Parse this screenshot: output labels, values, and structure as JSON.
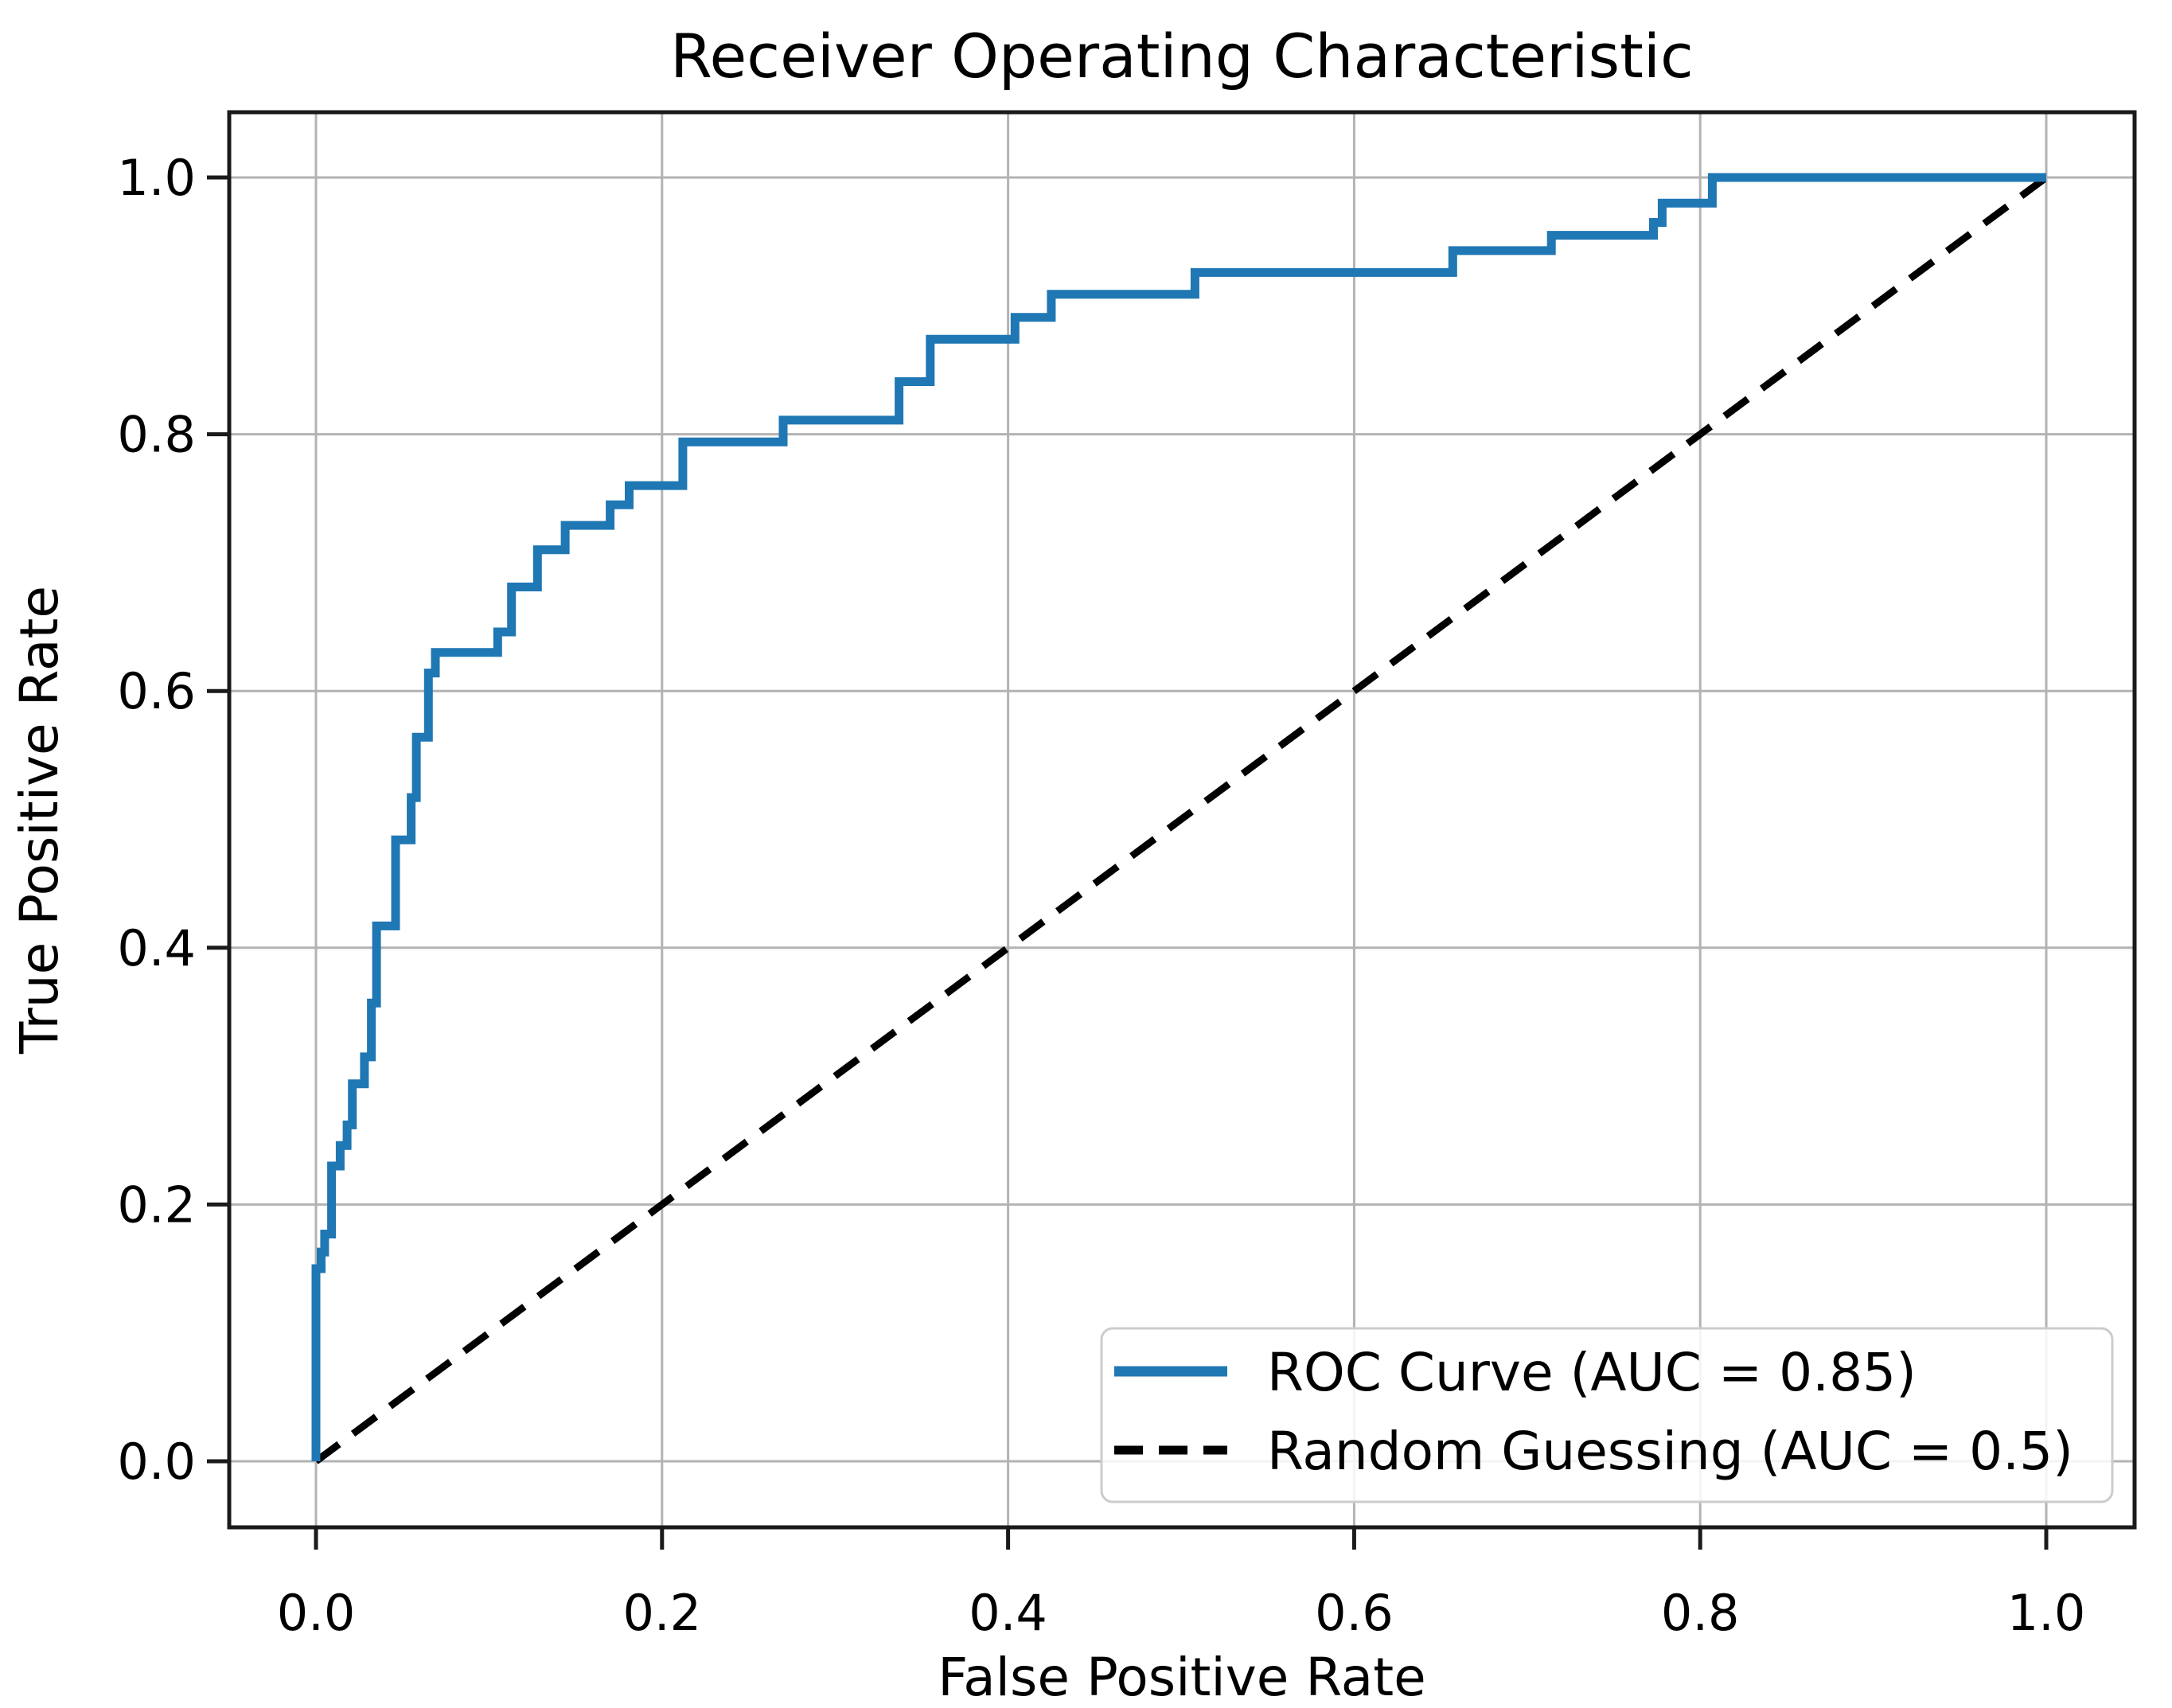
{
  "title": "Receiver Operating Characteristic",
  "x_axis": {
    "label": "False Positive Rate",
    "tick_labels": [
      "0.0",
      "0.2",
      "0.4",
      "0.6",
      "0.8",
      "1.0"
    ],
    "tick_values": [
      0,
      0.2,
      0.4,
      0.6,
      0.8,
      1.0
    ],
    "range": [
      -0.05,
      1.05
    ]
  },
  "y_axis": {
    "label": "True Positive Rate",
    "tick_labels": [
      "0.0",
      "0.2",
      "0.4",
      "0.6",
      "0.8",
      "1.0"
    ],
    "tick_values": [
      0,
      0.2,
      0.4,
      0.6,
      0.8,
      1.0
    ],
    "range": [
      -0.05,
      1.05
    ]
  },
  "legend": {
    "position": "lower right",
    "entries": [
      {
        "label": "ROC Curve (AUC = 0.85)",
        "line_style": "solid",
        "color": "#1f77b4"
      },
      {
        "label": "Random Guessing (AUC = 0.5)",
        "line_style": "dashed",
        "color": "#000000"
      }
    ]
  },
  "colors": {
    "curve": "#1f77b4",
    "diagonal": "#000000",
    "grid": "#b3b3b3",
    "spine": "#1a1a1a",
    "background": "#ffffff",
    "text": "#000000",
    "legend_border": "#cccccc",
    "legend_background": "rgba(255,255,255,0.85)"
  },
  "chart_data": {
    "type": "line",
    "title": "Receiver Operating Characteristic",
    "xlabel": "False Positive Rate",
    "ylabel": "True Positive Rate",
    "xlim": [
      0,
      1
    ],
    "ylim": [
      0,
      1
    ],
    "grid": true,
    "legend_position": "lower right",
    "series": [
      {
        "name": "ROC Curve (AUC = 0.85)",
        "auc": 0.85,
        "style": "solid",
        "color": "#1f77b4",
        "points": [
          [
            0.0,
            0.0
          ],
          [
            0.0,
            0.15
          ],
          [
            0.003,
            0.15
          ],
          [
            0.003,
            0.163
          ],
          [
            0.005,
            0.163
          ],
          [
            0.005,
            0.177
          ],
          [
            0.009,
            0.177
          ],
          [
            0.009,
            0.23
          ],
          [
            0.014,
            0.23
          ],
          [
            0.014,
            0.246
          ],
          [
            0.018,
            0.246
          ],
          [
            0.018,
            0.262
          ],
          [
            0.021,
            0.262
          ],
          [
            0.021,
            0.294
          ],
          [
            0.028,
            0.294
          ],
          [
            0.028,
            0.315
          ],
          [
            0.032,
            0.315
          ],
          [
            0.032,
            0.357
          ],
          [
            0.035,
            0.357
          ],
          [
            0.035,
            0.417
          ],
          [
            0.046,
            0.417
          ],
          [
            0.046,
            0.484
          ],
          [
            0.055,
            0.484
          ],
          [
            0.055,
            0.517
          ],
          [
            0.058,
            0.517
          ],
          [
            0.058,
            0.564
          ],
          [
            0.065,
            0.564
          ],
          [
            0.065,
            0.614
          ],
          [
            0.069,
            0.614
          ],
          [
            0.069,
            0.63
          ],
          [
            0.105,
            0.63
          ],
          [
            0.105,
            0.646
          ],
          [
            0.113,
            0.646
          ],
          [
            0.113,
            0.681
          ],
          [
            0.128,
            0.681
          ],
          [
            0.128,
            0.71
          ],
          [
            0.144,
            0.71
          ],
          [
            0.144,
            0.729
          ],
          [
            0.17,
            0.729
          ],
          [
            0.17,
            0.745
          ],
          [
            0.181,
            0.745
          ],
          [
            0.181,
            0.76
          ],
          [
            0.212,
            0.76
          ],
          [
            0.212,
            0.794
          ],
          [
            0.27,
            0.794
          ],
          [
            0.27,
            0.811
          ],
          [
            0.337,
            0.811
          ],
          [
            0.337,
            0.841
          ],
          [
            0.355,
            0.841
          ],
          [
            0.355,
            0.874
          ],
          [
            0.404,
            0.874
          ],
          [
            0.404,
            0.891
          ],
          [
            0.425,
            0.891
          ],
          [
            0.425,
            0.909
          ],
          [
            0.508,
            0.909
          ],
          [
            0.508,
            0.926
          ],
          [
            0.657,
            0.926
          ],
          [
            0.657,
            0.943
          ],
          [
            0.714,
            0.943
          ],
          [
            0.714,
            0.955
          ],
          [
            0.773,
            0.955
          ],
          [
            0.773,
            0.965
          ],
          [
            0.778,
            0.965
          ],
          [
            0.778,
            0.98
          ],
          [
            0.807,
            0.98
          ],
          [
            0.807,
            1.0
          ],
          [
            1.0,
            1.0
          ]
        ]
      },
      {
        "name": "Random Guessing (AUC = 0.5)",
        "auc": 0.5,
        "style": "dashed",
        "color": "#000000",
        "points": [
          [
            0,
            0
          ],
          [
            1,
            1
          ]
        ]
      }
    ]
  }
}
